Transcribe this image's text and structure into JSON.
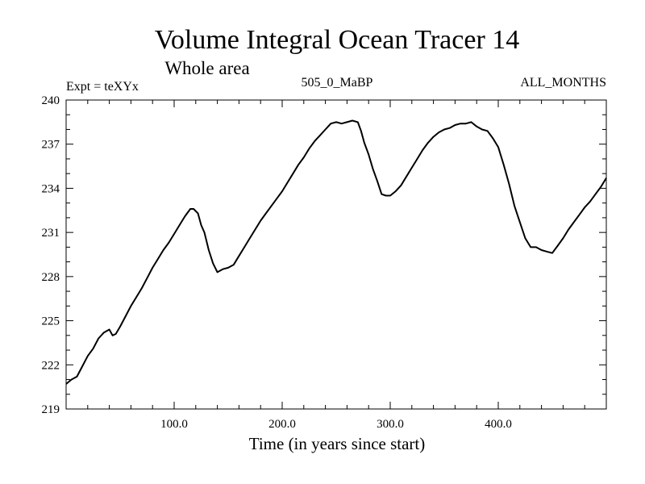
{
  "chart_data": {
    "type": "line",
    "title": "Volume Integral Ocean Tracer 14",
    "subtitle": "Whole area",
    "expt_label": "Expt = teXYx",
    "center_label": "505_0_MaBP",
    "right_label": "ALL_MONTHS",
    "xlabel": "Time (in years since start)",
    "ylabel": "",
    "xlim": [
      0,
      500
    ],
    "ylim": [
      219,
      240
    ],
    "x_ticks": [
      100,
      200,
      300,
      400
    ],
    "x_tick_labels": [
      "100.0",
      "200.0",
      "300.0",
      "400.0"
    ],
    "y_ticks": [
      219,
      222,
      225,
      228,
      231,
      234,
      237,
      240
    ],
    "y_tick_labels": [
      "219",
      "222",
      "225",
      "228",
      "231",
      "234",
      "237",
      "240"
    ],
    "grid": false,
    "series": [
      {
        "color": "#000000",
        "x": [
          0,
          5,
          10,
          15,
          20,
          25,
          30,
          35,
          40,
          43,
          46,
          50,
          55,
          60,
          65,
          70,
          75,
          80,
          85,
          90,
          95,
          100,
          105,
          110,
          115,
          118,
          122,
          125,
          128,
          132,
          136,
          140,
          145,
          150,
          155,
          160,
          165,
          170,
          175,
          180,
          185,
          190,
          195,
          200,
          205,
          210,
          215,
          220,
          225,
          230,
          235,
          240,
          245,
          250,
          255,
          260,
          265,
          270,
          273,
          276,
          280,
          284,
          288,
          292,
          296,
          300,
          305,
          310,
          315,
          320,
          325,
          330,
          335,
          340,
          345,
          350,
          355,
          360,
          365,
          370,
          375,
          380,
          385,
          390,
          395,
          400,
          405,
          410,
          415,
          420,
          425,
          430,
          435,
          440,
          445,
          450,
          455,
          460,
          465,
          470,
          475,
          480,
          485,
          490,
          495,
          500
        ],
        "values": [
          220.7,
          221.0,
          221.2,
          221.9,
          222.6,
          223.1,
          223.8,
          224.2,
          224.4,
          224.0,
          224.1,
          224.6,
          225.3,
          226.0,
          226.6,
          227.2,
          227.9,
          228.6,
          229.2,
          229.8,
          230.3,
          230.9,
          231.5,
          232.1,
          232.6,
          232.6,
          232.3,
          231.5,
          231.0,
          229.8,
          228.9,
          228.3,
          228.5,
          228.6,
          228.8,
          229.4,
          230.0,
          230.6,
          231.2,
          231.8,
          232.3,
          232.8,
          233.3,
          233.8,
          234.4,
          235.0,
          235.6,
          236.1,
          236.7,
          237.2,
          237.6,
          238.0,
          238.4,
          238.5,
          238.4,
          238.5,
          238.6,
          238.5,
          237.9,
          237.1,
          236.3,
          235.3,
          234.5,
          233.6,
          233.5,
          233.5,
          233.8,
          234.2,
          234.8,
          235.4,
          236.0,
          236.6,
          237.1,
          237.5,
          237.8,
          238.0,
          238.1,
          238.3,
          238.4,
          238.4,
          238.5,
          238.2,
          238.0,
          237.9,
          237.4,
          236.8,
          235.6,
          234.3,
          232.8,
          231.7,
          230.6,
          230.0,
          230.0,
          229.8,
          229.7,
          229.6,
          230.1,
          230.6,
          231.2,
          231.7,
          232.2,
          232.7,
          233.1,
          233.6,
          234.1,
          234.7
        ]
      }
    ]
  }
}
